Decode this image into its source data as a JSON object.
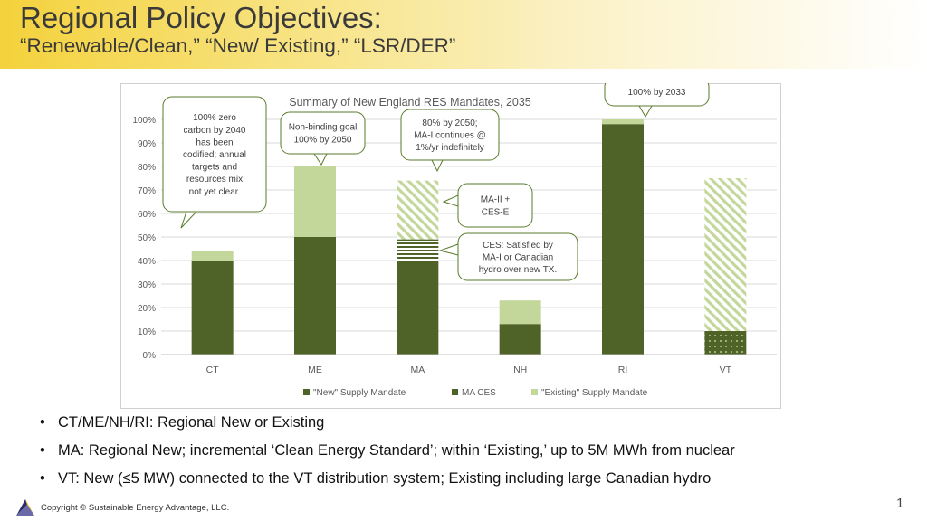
{
  "slide": {
    "title": "Regional Policy Objectives:",
    "subtitle": "“Renewable/Clean,” “New/ Existing,” “LSR/DER”",
    "bullets": [
      "CT/ME/NH/RI: Regional New or Existing",
      "MA: Regional New; incremental ‘Clean Energy Standard’; within ‘Existing,’ up to 5M MWh from nuclear",
      "VT: New (≤5 MW) connected to the VT distribution system; Existing including large Canadian hydro"
    ],
    "bullet_glyph": "•",
    "copyright": "Copyright © Sustainable Energy Advantage, LLC.",
    "page_number": "1"
  },
  "colors": {
    "new_mandate": "#4f6228",
    "existing_mandate": "#c4d79b",
    "callout_border": "#5a7a2a",
    "header_yellow": "#f4d23c"
  },
  "chart_data": {
    "type": "bar",
    "stacked": true,
    "title": "Summary of New England RES Mandates, 2035",
    "categories": [
      "CT",
      "ME",
      "MA",
      "NH",
      "RI",
      "VT"
    ],
    "ylim": [
      0,
      100
    ],
    "yticks": [
      "0%",
      "10%",
      "20%",
      "30%",
      "40%",
      "50%",
      "60%",
      "70%",
      "80%",
      "90%",
      "100%"
    ],
    "grid": true,
    "legend_position": "bottom",
    "series": [
      {
        "name": "\"New\" Supply Mandate",
        "values": [
          40,
          50,
          40,
          13,
          98,
          10
        ],
        "color": "#4f6228"
      },
      {
        "name": "MA CES",
        "values": [
          0,
          0,
          9,
          0,
          0,
          0
        ],
        "color": "#4f6228"
      },
      {
        "name": "\"Existing\" Supply Mandate",
        "values": [
          4,
          30,
          25,
          10,
          2,
          65
        ],
        "color": "#c4d79b"
      }
    ],
    "annotations": [
      "100% zero\ncarbon by 2040\nhas been\ncodified; annual\ntargets and\nresources mix\nnot yet clear.",
      "Non-binding goal\n100% by 2050",
      "80% by 2050;\nMA-I continues @\n1%/yr indefinitely",
      "MA-II +\nCES-E",
      "CES: Satisfied by\nMA-I or Canadian\nhydro over new TX.",
      "100% by 2033"
    ]
  }
}
